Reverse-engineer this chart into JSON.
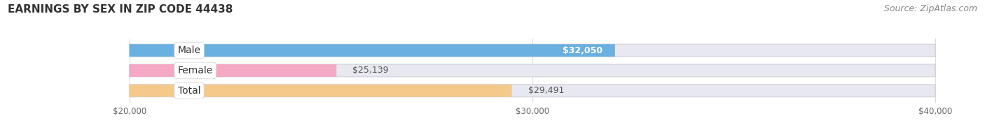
{
  "title": "EARNINGS BY SEX IN ZIP CODE 44438",
  "source": "Source: ZipAtlas.com",
  "categories": [
    "Male",
    "Female",
    "Total"
  ],
  "values": [
    32050,
    25139,
    29491
  ],
  "bar_colors": [
    "#6ab0e0",
    "#f4a8c4",
    "#f5c98a"
  ],
  "bar_bg_color": "#e8e8f0",
  "bar_border_color": "#d0d0da",
  "xlim_data": [
    20000,
    40000
  ],
  "xticks": [
    20000,
    30000,
    40000
  ],
  "xtick_labels": [
    "$20,000",
    "$30,000",
    "$40,000"
  ],
  "title_fontsize": 11,
  "source_fontsize": 9,
  "label_fontsize": 10,
  "value_fontsize": 9,
  "bar_height": 0.62,
  "background_color": "#ffffff",
  "value_inside_color": "#ffffff",
  "value_outside_color": "#555555"
}
